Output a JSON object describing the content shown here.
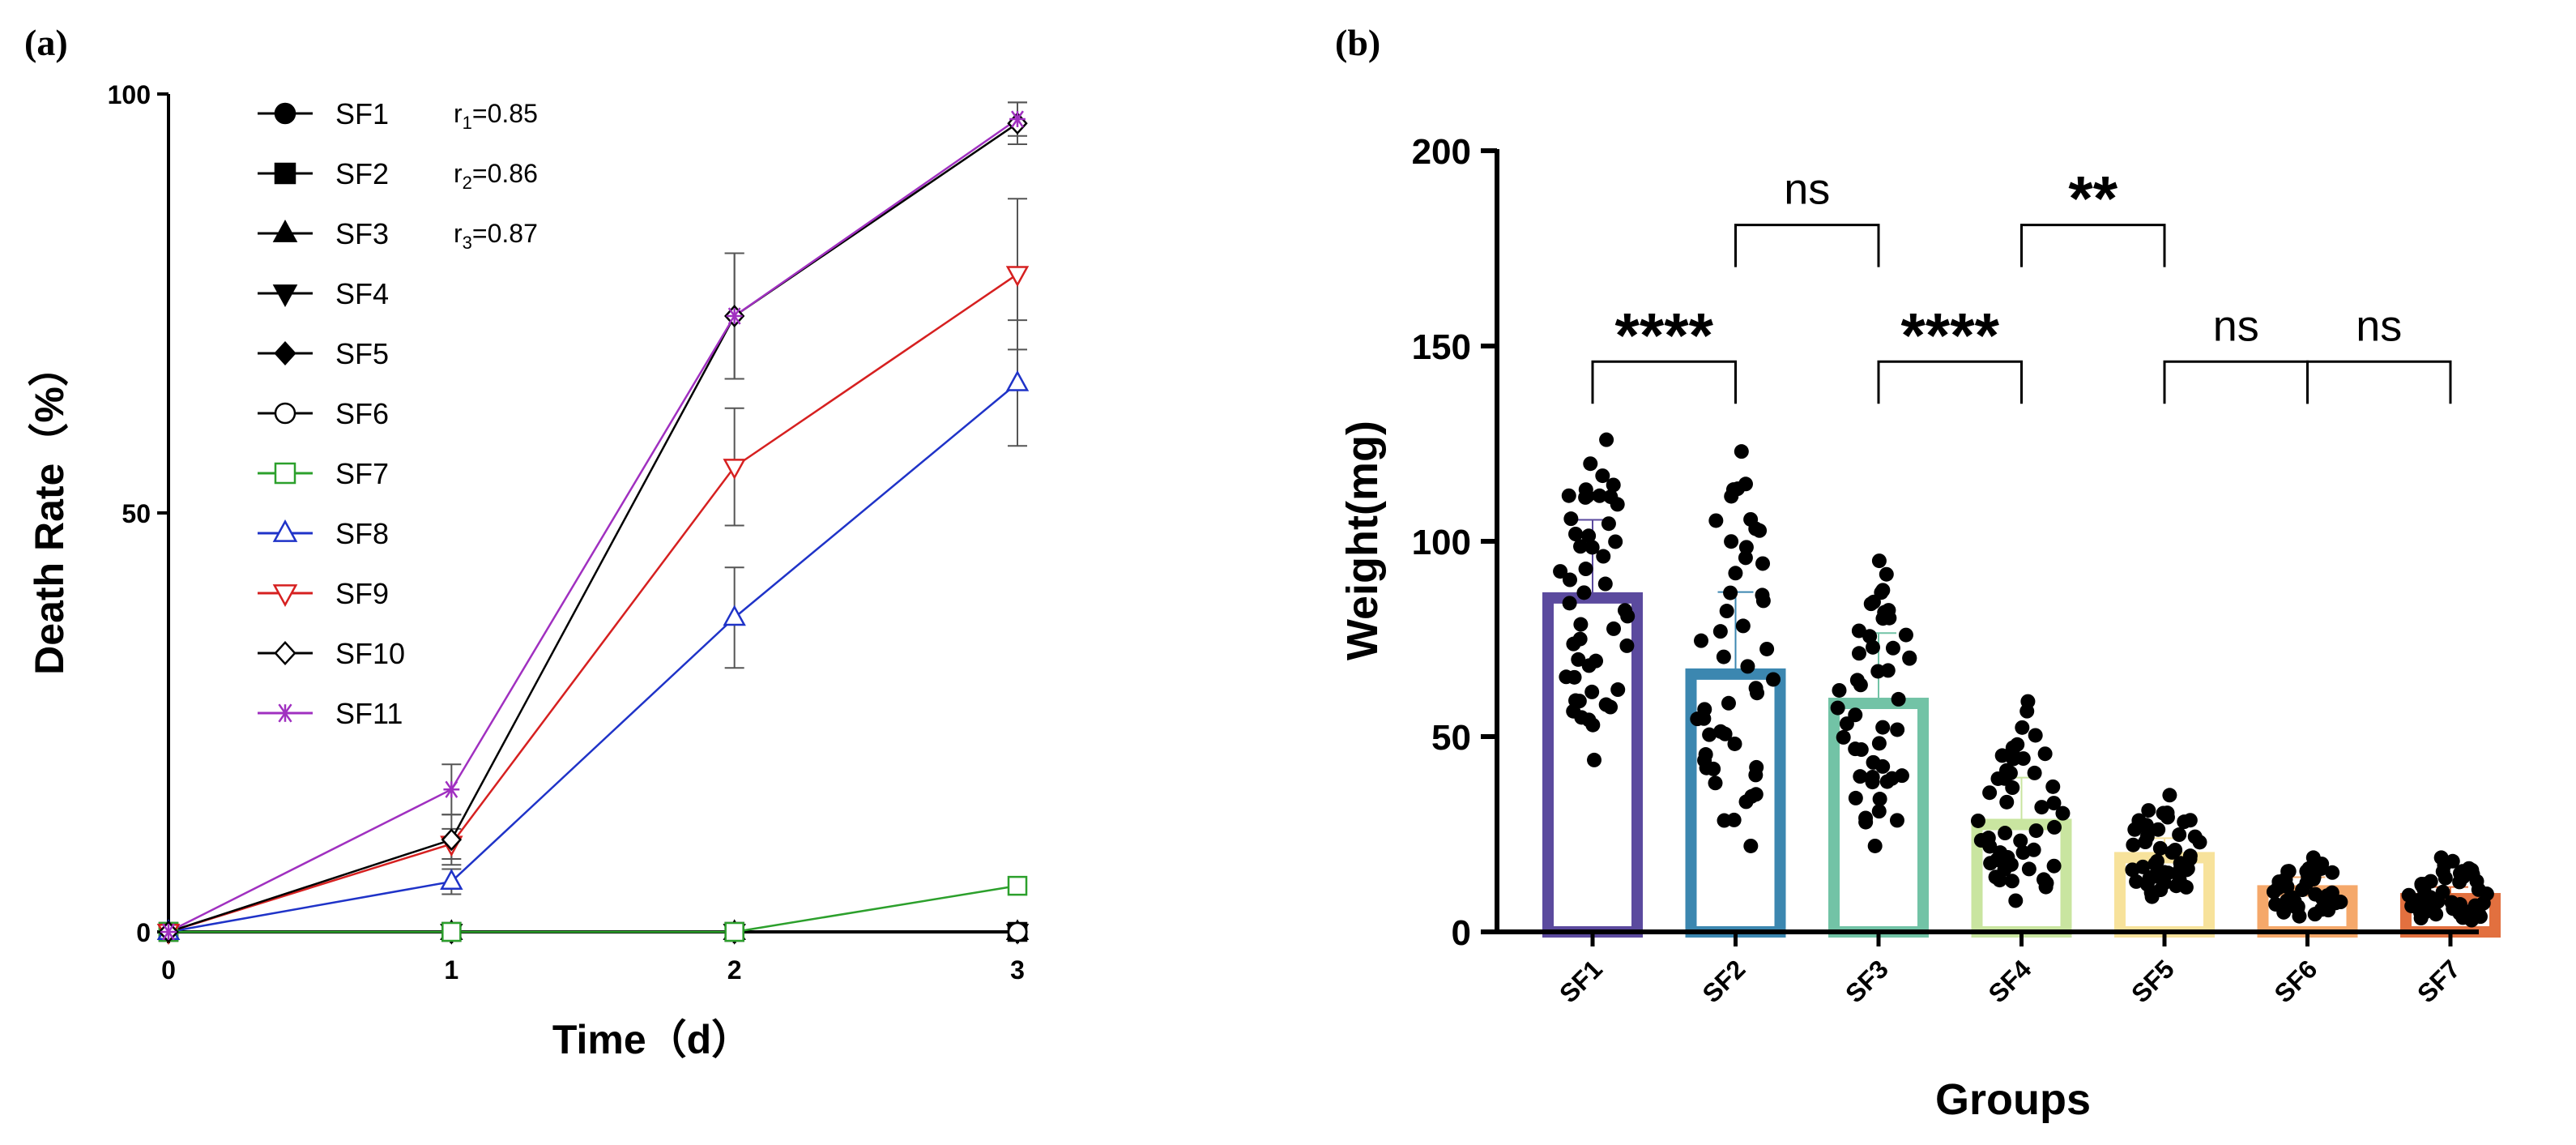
{
  "chart_data": [
    {
      "panel": "(a)",
      "type": "line",
      "xlabel": "Time（d）",
      "ylabel": "Death Rate（%）",
      "xlim": [
        0,
        3
      ],
      "ylim": [
        0,
        100
      ],
      "xticks": [
        "0",
        "1",
        "2",
        "3"
      ],
      "yticks": [
        "0",
        "50",
        "100"
      ],
      "x": [
        0,
        1,
        2,
        3
      ],
      "annotations": [
        {
          "base": "r",
          "sub": "1",
          "text": "=0.85"
        },
        {
          "base": "r",
          "sub": "2",
          "text": "=0.86"
        },
        {
          "base": "r",
          "sub": "3",
          "text": "=0.87"
        }
      ],
      "series": [
        {
          "name": "SF1",
          "marker": "circle-filled",
          "color": "#000000",
          "values": [
            0,
            0,
            0,
            0
          ],
          "err": [
            0,
            0,
            0,
            0
          ]
        },
        {
          "name": "SF2",
          "marker": "square-filled",
          "color": "#000000",
          "values": [
            0,
            0,
            0,
            0
          ],
          "err": [
            0,
            0,
            0,
            0
          ]
        },
        {
          "name": "SF3",
          "marker": "triangle-up-filled",
          "color": "#000000",
          "values": [
            0,
            0,
            0,
            0
          ],
          "err": [
            0,
            0,
            0,
            0
          ]
        },
        {
          "name": "SF4",
          "marker": "triangle-down-filled",
          "color": "#000000",
          "values": [
            0,
            0,
            0,
            0
          ],
          "err": [
            0,
            0,
            0,
            0
          ]
        },
        {
          "name": "SF5",
          "marker": "diamond-filled",
          "color": "#000000",
          "values": [
            0,
            0,
            0,
            0
          ],
          "err": [
            0,
            0,
            0,
            0
          ]
        },
        {
          "name": "SF6",
          "marker": "circle-open",
          "color": "#000000",
          "values": [
            0,
            0,
            0,
            0
          ],
          "err": [
            0,
            0,
            0,
            0
          ]
        },
        {
          "name": "SF7",
          "marker": "square-open",
          "color": "#2ca02c",
          "values": [
            0,
            0,
            0,
            5.5
          ],
          "err": [
            0,
            0,
            0,
            0
          ]
        },
        {
          "name": "SF8",
          "marker": "triangle-up-open",
          "color": "#1f33c8",
          "values": [
            0,
            6,
            37.5,
            65.5
          ],
          "err": [
            0,
            1.5,
            6,
            7.5
          ]
        },
        {
          "name": "SF9",
          "marker": "triangle-down-open",
          "color": "#d62020",
          "values": [
            0,
            10.5,
            55.5,
            78.5
          ],
          "err": [
            0,
            1.8,
            7,
            9
          ]
        },
        {
          "name": "SF10",
          "marker": "diamond-open",
          "color": "#000000",
          "values": [
            0,
            11,
            73.5,
            96.5
          ],
          "err": [
            0,
            3,
            7.5,
            2.5
          ]
        },
        {
          "name": "SF11",
          "marker": "asterisk",
          "color": "#a030c0",
          "values": [
            0,
            17,
            73.5,
            97
          ],
          "err": [
            0,
            3,
            7.5,
            2
          ]
        }
      ]
    },
    {
      "panel": "(b)",
      "type": "bar",
      "xlabel": "Groups",
      "ylabel": "Weight(mg)",
      "ylim": [
        0,
        200
      ],
      "yticks": [
        "0",
        "50",
        "100",
        "150",
        "200"
      ],
      "categories": [
        "SF1",
        "SF2",
        "SF3",
        "SF4",
        "SF5",
        "SF6",
        "SF7"
      ],
      "values": [
        85.5,
        66,
        58.5,
        27.5,
        19,
        10.5,
        8.5
      ],
      "sd": [
        20,
        21,
        18,
        12,
        5,
        3.5,
        3
      ],
      "colors": [
        "#5b4a9e",
        "#3c87b0",
        "#72c3a6",
        "#c9e5a0",
        "#f7e29b",
        "#f5a86a",
        "#e2703f"
      ],
      "point_ranges": [
        [
          44,
          126
        ],
        [
          22,
          123
        ],
        [
          22,
          95
        ],
        [
          8,
          59
        ],
        [
          9,
          35
        ],
        [
          4,
          19
        ],
        [
          3,
          19
        ]
      ],
      "comparisons": [
        {
          "from": "SF1",
          "to": "SF2",
          "label": "****",
          "y": 146
        },
        {
          "from": "SF2",
          "to": "SF3",
          "label": "ns",
          "y": 181
        },
        {
          "from": "SF3",
          "to": "SF4",
          "label": "****",
          "y": 146
        },
        {
          "from": "SF4",
          "to": "SF5",
          "label": "**",
          "y": 181
        },
        {
          "from": "SF5",
          "to": "SF6",
          "label": "ns",
          "y": 146
        },
        {
          "from": "SF6",
          "to": "SF7",
          "label": "ns",
          "y": 146
        }
      ]
    }
  ]
}
